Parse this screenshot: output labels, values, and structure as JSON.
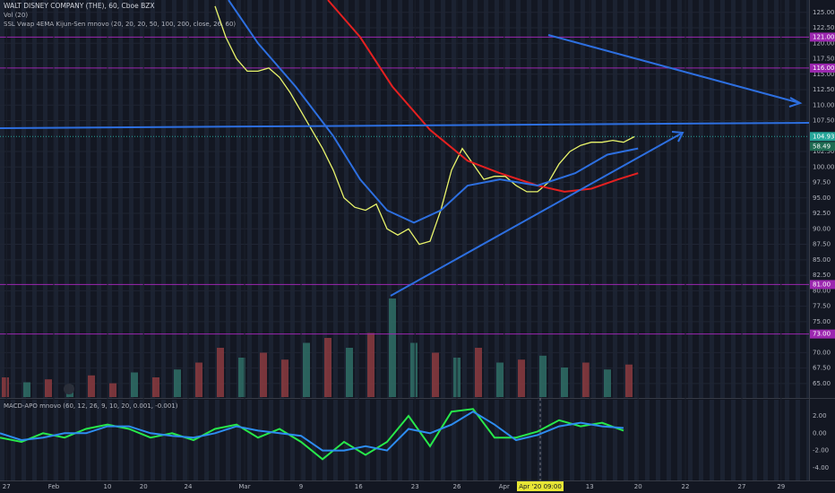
{
  "chart_data": [
    {
      "type": "line",
      "title": "WALT DISNEY COMPANY (THE), 60, Cboe BZX",
      "indicators": [
        "Vol (20)",
        "SSL Vwap 4EMA Kijun-Sen mnovo (20, 20, 20, 50, 100, 200, close, 26, 60)"
      ],
      "xlim": [
        0,
        150.5
      ],
      "ylim": [
        62.8,
        127
      ],
      "grid": true,
      "yticks": [
        {
          "value": 125,
          "label": "125.00"
        },
        {
          "value": 122.5,
          "label": "122.50"
        },
        {
          "value": 120,
          "label": "120.00"
        },
        {
          "value": 117.5,
          "label": "117.50"
        },
        {
          "value": 115,
          "label": "115.00"
        },
        {
          "value": 112.5,
          "label": "112.50"
        },
        {
          "value": 110,
          "label": "110.00"
        },
        {
          "value": 107.5,
          "label": "107.50"
        },
        {
          "value": 102.5,
          "label": "102.50"
        },
        {
          "value": 100,
          "label": "100.00"
        },
        {
          "value": 97.5,
          "label": "97.50"
        },
        {
          "value": 95,
          "label": "95.00"
        },
        {
          "value": 92.5,
          "label": "92.50"
        },
        {
          "value": 90,
          "label": "90.00"
        },
        {
          "value": 87.5,
          "label": "87.50"
        },
        {
          "value": 85,
          "label": "85.00"
        },
        {
          "value": 82.5,
          "label": "82.50"
        },
        {
          "value": 80,
          "label": "80.00"
        },
        {
          "value": 77.5,
          "label": "77.50"
        },
        {
          "value": 75,
          "label": "75.00"
        },
        {
          "value": 70,
          "label": "70.00"
        },
        {
          "value": 67.5,
          "label": "67.50"
        },
        {
          "value": 65,
          "label": "65.00"
        }
      ],
      "series": [
        {
          "color": "#e8f36a",
          "x": [
            40,
            42,
            44,
            46,
            48,
            50,
            52,
            54,
            56,
            58,
            60,
            62,
            64,
            66,
            68,
            70,
            72,
            74,
            76,
            78,
            80,
            82,
            84,
            86,
            88,
            90,
            92,
            94,
            96,
            98,
            100,
            102,
            104,
            106,
            108,
            110,
            112,
            114,
            116,
            118
          ],
          "values": [
            126,
            121,
            117.5,
            115.5,
            115.5,
            116,
            114.5,
            112,
            109,
            106,
            103,
            99.5,
            95,
            93.5,
            93,
            94,
            90,
            89,
            90,
            87.5,
            88,
            93,
            99.5,
            103,
            100.5,
            98,
            98.5,
            98.5,
            97,
            96,
            96,
            97.5,
            100.5,
            102.5,
            103.5,
            104,
            104,
            104.3,
            104,
            104.9
          ]
        },
        {
          "color": "#e52020",
          "x": [
            61,
            67,
            73,
            80,
            87,
            93,
            100,
            105,
            110,
            115,
            118.7
          ],
          "values": [
            127,
            121,
            113,
            106,
            101,
            99,
            97,
            96,
            96.5,
            98,
            99
          ]
        },
        {
          "color": "#2d6fe0",
          "x": [
            42.5,
            48,
            55,
            62,
            67,
            72,
            77,
            82,
            87,
            93,
            100,
            107,
            113,
            118.7
          ],
          "values": [
            127,
            120,
            113,
            105,
            98,
            93,
            91,
            93,
            97,
            98,
            97,
            99,
            102,
            103
          ]
        }
      ],
      "levels": [
        {
          "value": 121,
          "label": "121.00"
        },
        {
          "value": 116,
          "label": "116.00"
        },
        {
          "value": 81,
          "label": "81.00"
        },
        {
          "value": 73,
          "label": "73.00"
        }
      ],
      "level_color": "#9c27b0",
      "last_price": {
        "value": 104.93,
        "label": "104.93"
      },
      "badge_text": "58.49",
      "volume": {
        "ylim": [
          0,
          100
        ],
        "x": [
          1,
          5,
          9,
          13,
          17,
          21,
          25,
          29,
          33,
          37,
          41,
          45,
          49,
          53,
          57,
          61,
          65,
          69,
          73,
          77,
          81,
          85,
          89,
          93,
          97,
          101,
          105,
          109,
          113,
          117
        ],
        "values": [
          20,
          15,
          18,
          12,
          22,
          14,
          25,
          20,
          28,
          35,
          50,
          40,
          45,
          38,
          55,
          60,
          50,
          65,
          100,
          55,
          45,
          40,
          50,
          35,
          38,
          42,
          30,
          35,
          28,
          33
        ],
        "colors": [
          "#8c3b3f",
          "#2f6e66",
          "#8c3b3f",
          "#2f6e66",
          "#8c3b3f",
          "#8c3b3f",
          "#2f6e66",
          "#8c3b3f",
          "#2f6e66",
          "#8c3b3f",
          "#8c3b3f",
          "#2f6e66",
          "#8c3b3f",
          "#8c3b3f",
          "#2f6e66",
          "#8c3b3f",
          "#2f6e66",
          "#8c3b3f",
          "#2f6e66",
          "#2f6e66",
          "#8c3b3f",
          "#2f6e66",
          "#8c3b3f",
          "#2f6e66",
          "#8c3b3f",
          "#2f6e66",
          "#2f6e66",
          "#8c3b3f",
          "#2f6e66",
          "#8c3b3f"
        ]
      }
    },
    {
      "type": "line",
      "title": "MACD-APO mnovo (60, 12, 26, 9, 10, 20, 0.001, -0.001)",
      "xlim": [
        0,
        150.5
      ],
      "ylim": [
        -5.35,
        3.76
      ],
      "yticks": [
        {
          "value": 2,
          "label": "2.00"
        },
        {
          "value": 0,
          "label": "0.00"
        },
        {
          "value": -2,
          "label": "-2.00"
        },
        {
          "value": -4,
          "label": "-4.00"
        }
      ],
      "xticks": [
        {
          "value": 1.2,
          "label": "27"
        },
        {
          "value": 10,
          "label": "Feb"
        },
        {
          "value": 20,
          "label": "10"
        },
        {
          "value": 26.7,
          "label": "20"
        },
        {
          "value": 35,
          "label": "24"
        },
        {
          "value": 45.5,
          "label": "Mar"
        },
        {
          "value": 56,
          "label": "9"
        },
        {
          "value": 66.7,
          "label": "16"
        },
        {
          "value": 77.2,
          "label": "23"
        },
        {
          "value": 85,
          "label": "26"
        },
        {
          "value": 93.8,
          "label": "Apr"
        },
        {
          "value": 109.7,
          "label": "13"
        },
        {
          "value": 118.7,
          "label": "20"
        },
        {
          "value": 127.5,
          "label": "22"
        },
        {
          "value": 138,
          "label": "27"
        },
        {
          "value": 145.3,
          "label": "29"
        }
      ],
      "crosshair": {
        "value": 100.5,
        "label": "Apr '20 09:00"
      },
      "series": [
        {
          "color": "#27e84a",
          "x": [
            0,
            4,
            8,
            12,
            16,
            20,
            24,
            28,
            32,
            36,
            40,
            44,
            48,
            52,
            56,
            60,
            64,
            68,
            72,
            76,
            80,
            84,
            88,
            92,
            96,
            100,
            104,
            108,
            112,
            116
          ],
          "values": [
            -0.5,
            -1,
            0,
            -0.5,
            0.5,
            1,
            0.5,
            -0.5,
            0,
            -0.8,
            0.5,
            1,
            -0.5,
            0.5,
            -1,
            -3,
            -1,
            -2.5,
            -1,
            2,
            -1.5,
            2.5,
            2.8,
            -0.5,
            -0.5,
            0.2,
            1.5,
            0.8,
            1.2,
            0.3
          ]
        },
        {
          "color": "#2d8cf0",
          "x": [
            0,
            4,
            8,
            12,
            16,
            20,
            24,
            28,
            32,
            36,
            40,
            44,
            48,
            52,
            56,
            60,
            64,
            68,
            72,
            76,
            80,
            84,
            88,
            92,
            96,
            100,
            104,
            108,
            112,
            116
          ],
          "values": [
            0,
            -0.8,
            -0.5,
            0,
            0,
            0.8,
            0.8,
            0,
            -0.3,
            -0.5,
            0,
            0.8,
            0.3,
            0,
            -0.3,
            -2,
            -2,
            -1.5,
            -2,
            0.5,
            0,
            1,
            2.5,
            1,
            -0.8,
            -0.2,
            0.8,
            1.2,
            0.8,
            0.6
          ]
        }
      ]
    }
  ]
}
